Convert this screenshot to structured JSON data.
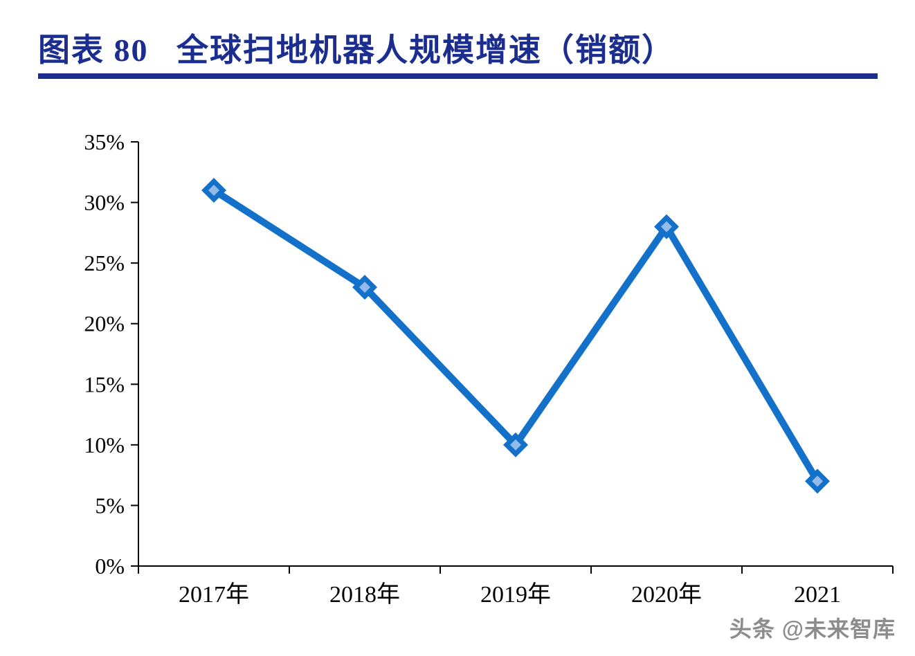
{
  "title": "图表 80   全球扫地机器人规模增速（销额）",
  "watermark": "头条 @未来智库",
  "colors": {
    "title": "#1b2d8e",
    "underline": "#1b2d8e",
    "line": "#1471c9",
    "marker_outer": "#1471c9",
    "marker_inner": "#93bbe9",
    "axis": "#000000",
    "watermark": "#8c8c8c"
  },
  "chart_data": {
    "type": "line",
    "title": "图表 80 全球扫地机器人规模增速（销额）",
    "categories": [
      "2017年",
      "2018年",
      "2019年",
      "2020年",
      "2021"
    ],
    "values": [
      31,
      23,
      10,
      28,
      7
    ],
    "unit": "%",
    "xlabel": "",
    "ylabel": "",
    "ylim": [
      0,
      35
    ],
    "ytick_step": 5,
    "ytick_labels": [
      "0%",
      "5%",
      "10%",
      "15%",
      "20%",
      "25%",
      "30%",
      "35%"
    ],
    "grid": false,
    "legend_position": "none"
  }
}
